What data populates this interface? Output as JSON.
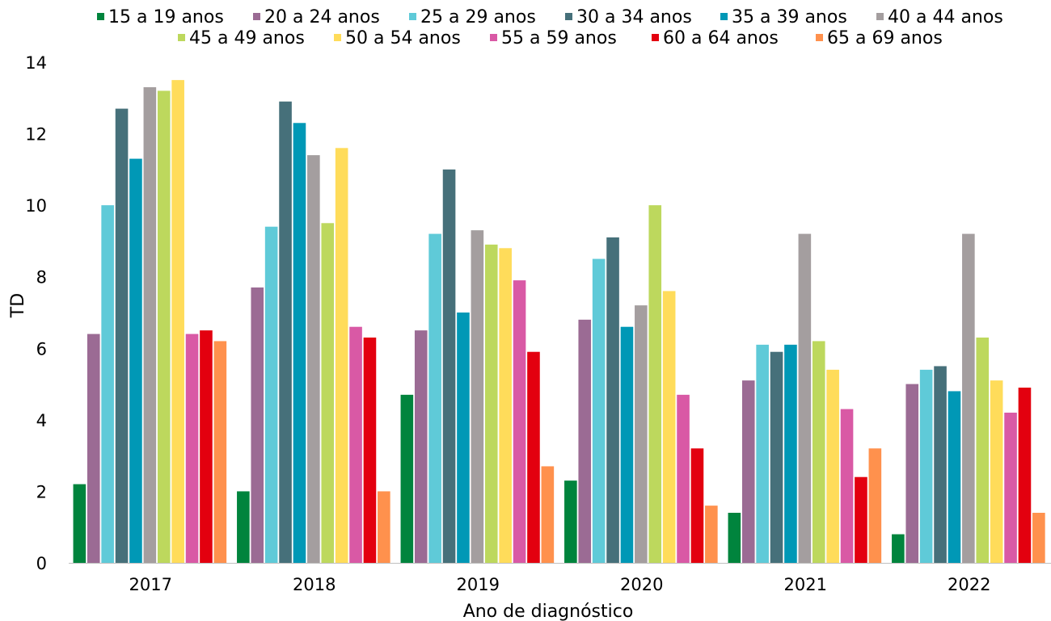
{
  "chart_data": {
    "type": "bar",
    "title": "",
    "xlabel": "Ano de diagnóstico",
    "ylabel": "TD",
    "ylim": [
      0,
      14
    ],
    "yticks": [
      0,
      2,
      4,
      6,
      8,
      10,
      12,
      14
    ],
    "grid": false,
    "legend_position": "top",
    "categories": [
      "2017",
      "2018",
      "2019",
      "2020",
      "2021",
      "2022"
    ],
    "series": [
      {
        "name": "15 a 19 anos",
        "color": "#00843d",
        "values": [
          2.2,
          2.0,
          4.7,
          2.3,
          1.4,
          0.8
        ]
      },
      {
        "name": "20 a 24 anos",
        "color": "#9b6b94",
        "values": [
          6.4,
          7.7,
          6.5,
          6.8,
          5.1,
          5.0
        ]
      },
      {
        "name": "25 a 29 anos",
        "color": "#5fcad8",
        "values": [
          10.0,
          9.4,
          9.2,
          8.5,
          6.1,
          5.4
        ]
      },
      {
        "name": "30 a 34 anos",
        "color": "#46707a",
        "values": [
          12.7,
          12.9,
          11.0,
          9.1,
          5.9,
          5.5
        ]
      },
      {
        "name": "35 a 39 anos",
        "color": "#0098b6",
        "values": [
          11.3,
          12.3,
          7.0,
          6.6,
          6.1,
          4.8
        ]
      },
      {
        "name": "40 a 44 anos",
        "color": "#a49e9f",
        "values": [
          13.3,
          11.4,
          9.3,
          7.2,
          9.2,
          9.2
        ]
      },
      {
        "name": "45 a 49 anos",
        "color": "#bdd85d",
        "values": [
          13.2,
          9.5,
          8.9,
          10.0,
          6.2,
          6.3
        ]
      },
      {
        "name": "50 a 54 anos",
        "color": "#ffdc5a",
        "values": [
          13.5,
          11.6,
          8.8,
          7.6,
          5.4,
          5.1
        ]
      },
      {
        "name": "55 a 59 anos",
        "color": "#d959a5",
        "values": [
          6.4,
          6.6,
          7.9,
          4.7,
          4.3,
          4.2
        ]
      },
      {
        "name": "60 a 64 anos",
        "color": "#e3000f",
        "values": [
          6.5,
          6.3,
          5.9,
          3.2,
          2.4,
          4.9
        ]
      },
      {
        "name": "65 a 69 anos",
        "color": "#ff914d",
        "values": [
          6.2,
          2.0,
          2.7,
          1.6,
          3.2,
          1.4
        ]
      }
    ]
  }
}
